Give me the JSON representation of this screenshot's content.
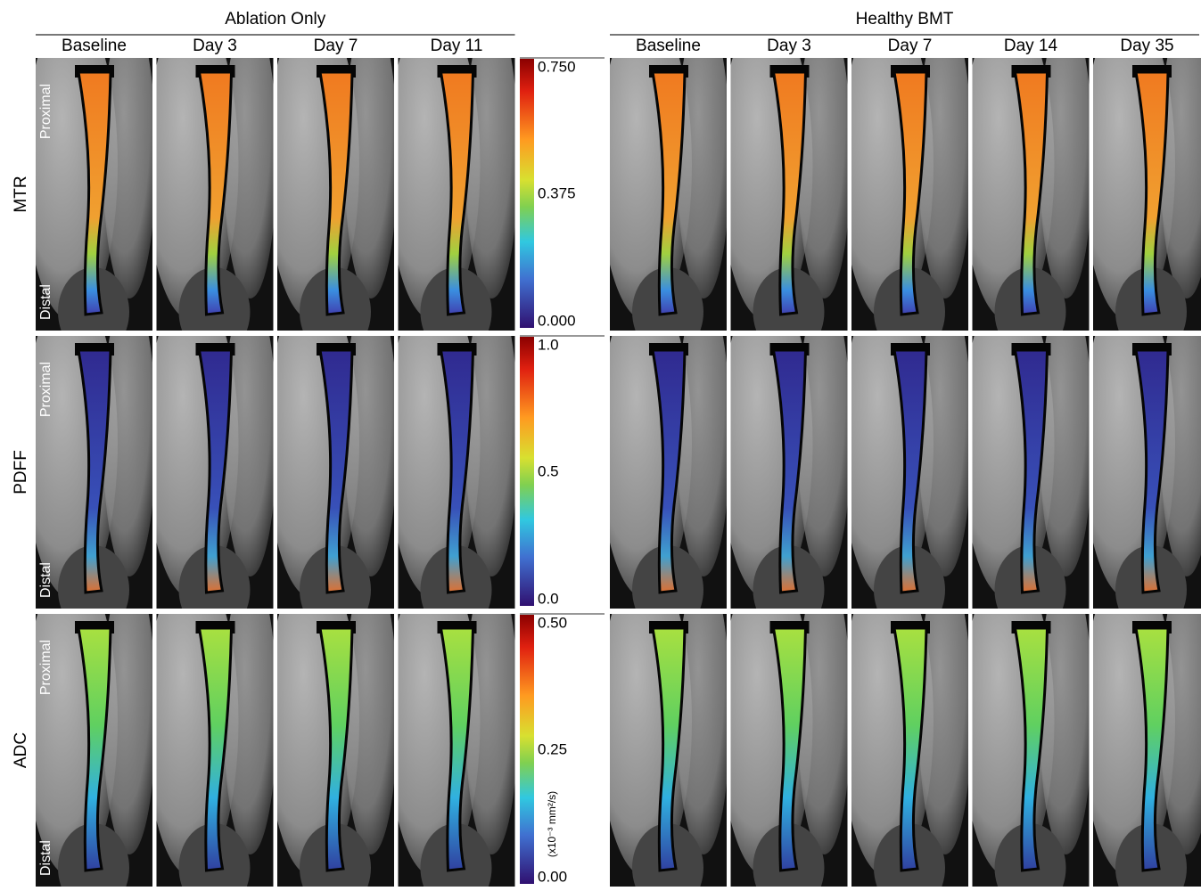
{
  "groups": [
    {
      "title": "Ablation Only",
      "columns": [
        "Baseline",
        "Day 3",
        "Day 7",
        "Day 11"
      ]
    },
    {
      "title": "Healthy BMT",
      "columns": [
        "Baseline",
        "Day 3",
        "Day 7",
        "Day 14",
        "Day 35"
      ]
    }
  ],
  "rows": [
    {
      "label": "MTR",
      "colorbar": {
        "ticks": [
          "0.750",
          "0.375",
          "0.000"
        ]
      }
    },
    {
      "label": "PDFF",
      "colorbar": {
        "ticks": [
          "1.0",
          "0.5",
          "0.0"
        ]
      }
    },
    {
      "label": "ADC",
      "colorbar": {
        "ticks": [
          "0.50",
          "0.25",
          "0.00"
        ],
        "unit": "(x10⁻³ mm²/s)"
      }
    }
  ],
  "orientation": {
    "proximal": "Proximal",
    "distal": "Distal"
  }
}
